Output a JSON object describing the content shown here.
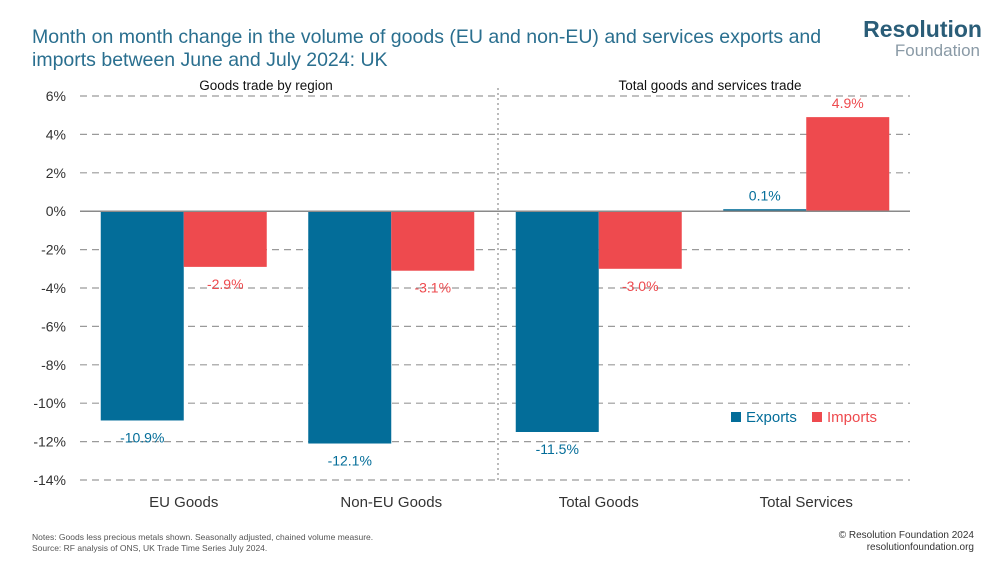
{
  "header": {
    "title_line1": "Month on month change in the volume of goods (EU and non-EU) and services exports and",
    "title_line2": "imports between June and July 2024: UK"
  },
  "logo": {
    "main": "Resolution",
    "sub": "Foundation"
  },
  "footer": {
    "notes": "Notes: Goods less precious metals shown. Seasonally adjusted, chained volume measure.",
    "source": "Source: RF analysis of ONS, UK Trade Time Series July 2024.",
    "copyright": "© Resolution Foundation 2024",
    "website": "resolutionfoundation.org"
  },
  "colors": {
    "exports": "#036d99",
    "imports": "#ee4a4e",
    "grid": "#9a9a9a",
    "axis_text": "#333333"
  },
  "chart_data": {
    "type": "bar",
    "panels": [
      "Goods trade by region",
      "Total goods and services trade"
    ],
    "categories": [
      "EU Goods",
      "Non-EU Goods",
      "Total Goods",
      "Total Services"
    ],
    "series": [
      {
        "name": "Exports",
        "values": [
          -10.9,
          -12.1,
          -11.5,
          0.1
        ],
        "labels": [
          "-10.9%",
          "-12.1%",
          "-11.5%",
          "0.1%"
        ]
      },
      {
        "name": "Imports",
        "values": [
          -2.9,
          -3.1,
          -3.0,
          4.9
        ],
        "labels": [
          "-2.9%",
          "-3.1%",
          "-3.0%",
          "4.9%"
        ]
      }
    ],
    "yticks": [
      6,
      4,
      2,
      0,
      -2,
      -4,
      -6,
      -8,
      -10,
      -12,
      -14
    ],
    "ytick_labels": [
      "6%",
      "4%",
      "2%",
      "0%",
      "-2%",
      "-4%",
      "-6%",
      "-8%",
      "-10%",
      "-12%",
      "-14%"
    ],
    "ylim": [
      -14,
      6
    ],
    "legend": [
      "Exports",
      "Imports"
    ],
    "legend_position": "bottom-right",
    "grid": true
  }
}
